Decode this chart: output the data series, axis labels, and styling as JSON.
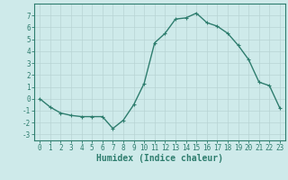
{
  "x": [
    0,
    1,
    2,
    3,
    4,
    5,
    6,
    7,
    8,
    9,
    10,
    11,
    12,
    13,
    14,
    15,
    16,
    17,
    18,
    19,
    20,
    21,
    22,
    23
  ],
  "y": [
    0.0,
    -0.7,
    -1.2,
    -1.4,
    -1.5,
    -1.5,
    -1.5,
    -2.5,
    -1.8,
    -0.5,
    1.3,
    4.7,
    5.5,
    6.7,
    6.8,
    7.2,
    6.4,
    6.1,
    5.5,
    4.5,
    3.3,
    1.4,
    1.1,
    -0.8
  ],
  "line_color": "#2e7d6e",
  "marker": "+",
  "markersize": 3,
  "linewidth": 1.0,
  "xlabel": "Humidex (Indice chaleur)",
  "xlabel_fontsize": 7,
  "ylim": [
    -3.5,
    8.0
  ],
  "xlim": [
    -0.5,
    23.5
  ],
  "yticks": [
    -3,
    -2,
    -1,
    0,
    1,
    2,
    3,
    4,
    5,
    6,
    7
  ],
  "xticks": [
    0,
    1,
    2,
    3,
    4,
    5,
    6,
    7,
    8,
    9,
    10,
    11,
    12,
    13,
    14,
    15,
    16,
    17,
    18,
    19,
    20,
    21,
    22,
    23
  ],
  "bg_color": "#ceeaea",
  "grid_color": "#b8d4d4",
  "tick_fontsize": 5.5,
  "spine_color": "#2e7d6e",
  "markeredgewidth": 0.8
}
